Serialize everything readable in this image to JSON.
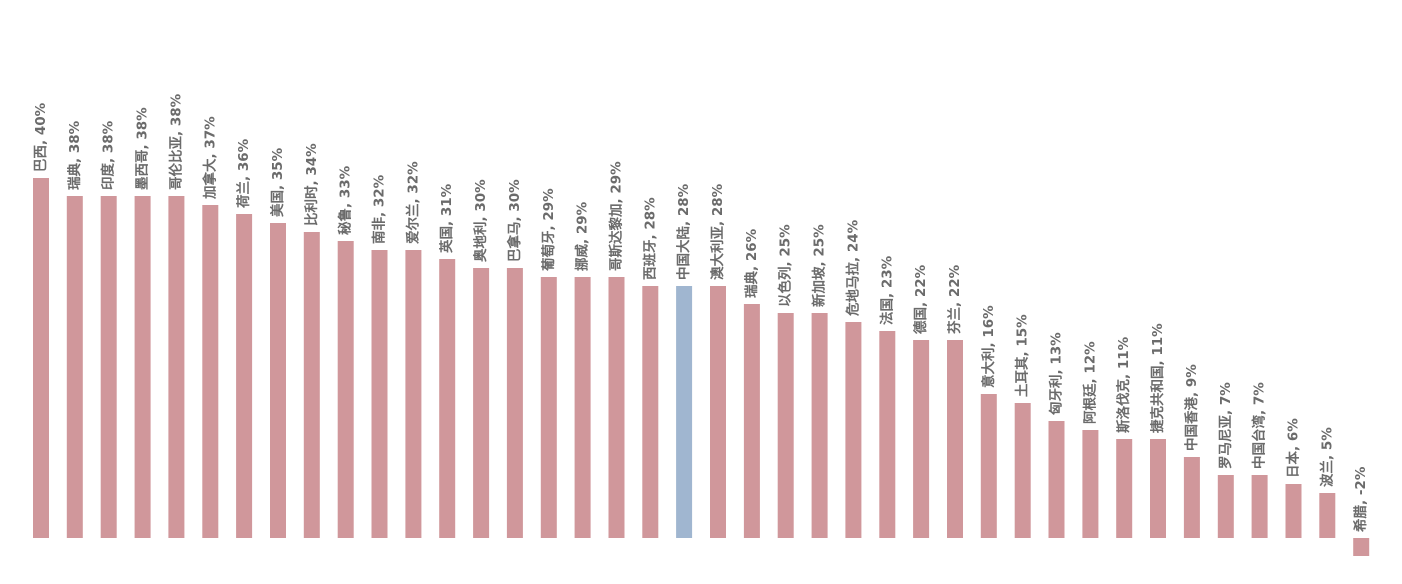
{
  "chart_data": {
    "type": "bar",
    "title": "",
    "xlabel": "",
    "ylabel": "",
    "ylim": [
      -2,
      40
    ],
    "grid": false,
    "legend": "none",
    "label_sep": ", ",
    "value_suffix": "%",
    "default_color": "#d0979b",
    "highlight_color": "#a0b6d0",
    "highlight_index": 19,
    "categories": [
      "巴西",
      "瑞典",
      "印度",
      "墨西哥",
      "哥伦比亚",
      "加拿大",
      "荷兰",
      "美国",
      "比利时",
      "秘鲁",
      "南非",
      "爱尔兰",
      "英国",
      "奥地利",
      "巴拿马",
      "葡萄牙",
      "挪威",
      "哥斯达黎加",
      "西班牙",
      "中国大陆",
      "澳大利亚",
      "瑞典",
      "以色列",
      "新加坡",
      "危地马拉",
      "法国",
      "德国",
      "芬兰",
      "意大利",
      "土耳其",
      "匈牙利",
      "阿根廷",
      "斯洛伐克",
      "捷克共和国",
      "中国香港",
      "罗马尼亚",
      "中国台湾",
      "日本",
      "波兰",
      "希腊"
    ],
    "values": [
      40,
      38,
      38,
      38,
      38,
      37,
      36,
      35,
      34,
      33,
      32,
      32,
      31,
      30,
      30,
      29,
      29,
      29,
      28,
      28,
      28,
      26,
      25,
      25,
      24,
      23,
      22,
      22,
      16,
      15,
      13,
      12,
      11,
      11,
      9,
      7,
      7,
      6,
      5,
      -2
    ]
  }
}
